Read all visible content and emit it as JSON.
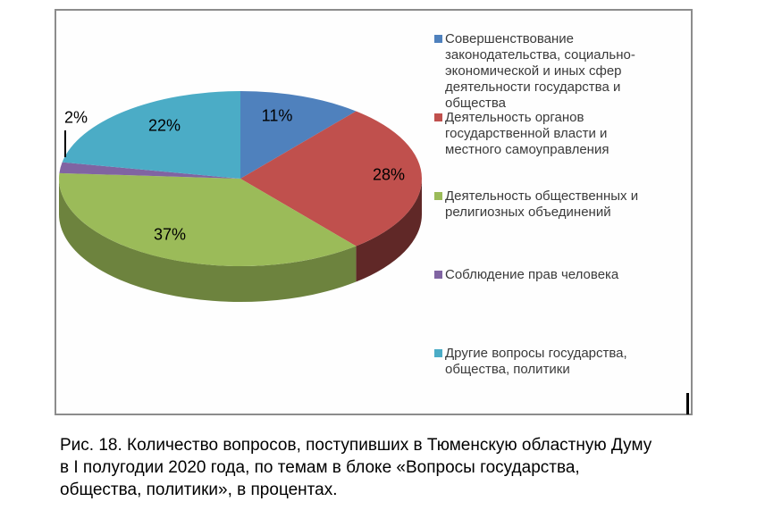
{
  "figure": {
    "caption_lines": [
      "Рис. 18. Количество вопросов, поступивших в Тюменскую областную Думу",
      "в I полугодии 2020 года, по темам в блоке «Вопросы государства,",
      "общества, политики», в процентах."
    ]
  },
  "chart_data": {
    "type": "pie",
    "style": "3d",
    "unit": "percent",
    "title": "",
    "values": [
      11,
      28,
      37,
      2,
      22
    ],
    "data_labels": [
      "11%",
      "28%",
      "37%",
      "2%",
      "22%"
    ],
    "labels": [
      "Совершенствование законодательства, социально-экономической и иных сфер деятельности государства и общества",
      "Деятельность органов государственной власти и местного самоуправления",
      "Деятельность общественных и религиозных объединений",
      "Соблюдение прав человека",
      "Другие вопросы государства, общества, политики"
    ],
    "colors": [
      "#4F81BD",
      "#C0504D",
      "#9BBB59",
      "#8064A2",
      "#4BACC6"
    ],
    "legend_position": "right",
    "start_angle_deg": 0,
    "direction": "clockwise"
  },
  "legend": {
    "items": [
      {
        "lines": [
          "Совершенствование",
          "законодательства, социально-",
          "экономической и иных сфер",
          "деятельности государства и",
          "общества"
        ]
      },
      {
        "lines": [
          "Деятельность органов",
          "государственной власти и",
          "местного самоуправления"
        ]
      },
      {
        "lines": [
          "Деятельность общественных и",
          "религиозных объединений"
        ]
      },
      {
        "lines": [
          "Соблюдение прав человека"
        ]
      },
      {
        "lines": [
          "Другие вопросы государства,",
          "общества, политики"
        ]
      }
    ]
  }
}
